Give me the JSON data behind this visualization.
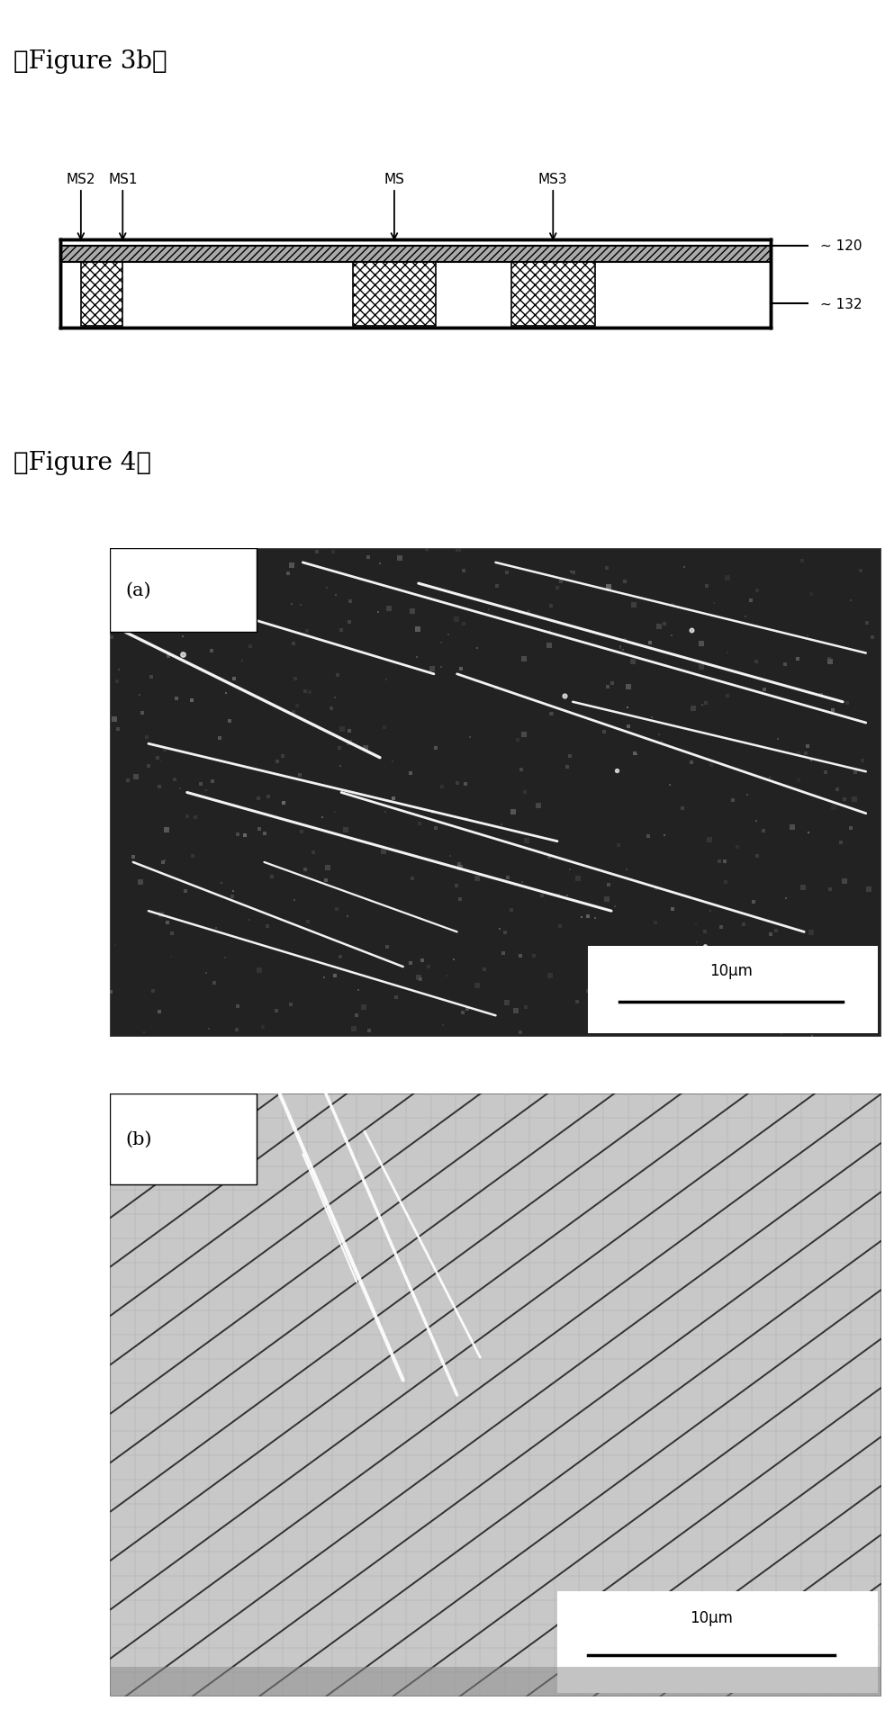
{
  "fig3b_label": "』Figure 3b』",
  "fig4_label": "』Figure 4』",
  "label_120": "120",
  "label_132": "132",
  "labels_ms": [
    "MS2",
    "MS1",
    "MS",
    "MS3"
  ],
  "bg_color": "#ffffff",
  "photo_a_label": "(a)",
  "photo_b_label": "(b)",
  "scalebar_label": "10μm",
  "fig3b_label_raw": "【Figure 3b】",
  "fig4_label_raw": "【Figure 4】"
}
